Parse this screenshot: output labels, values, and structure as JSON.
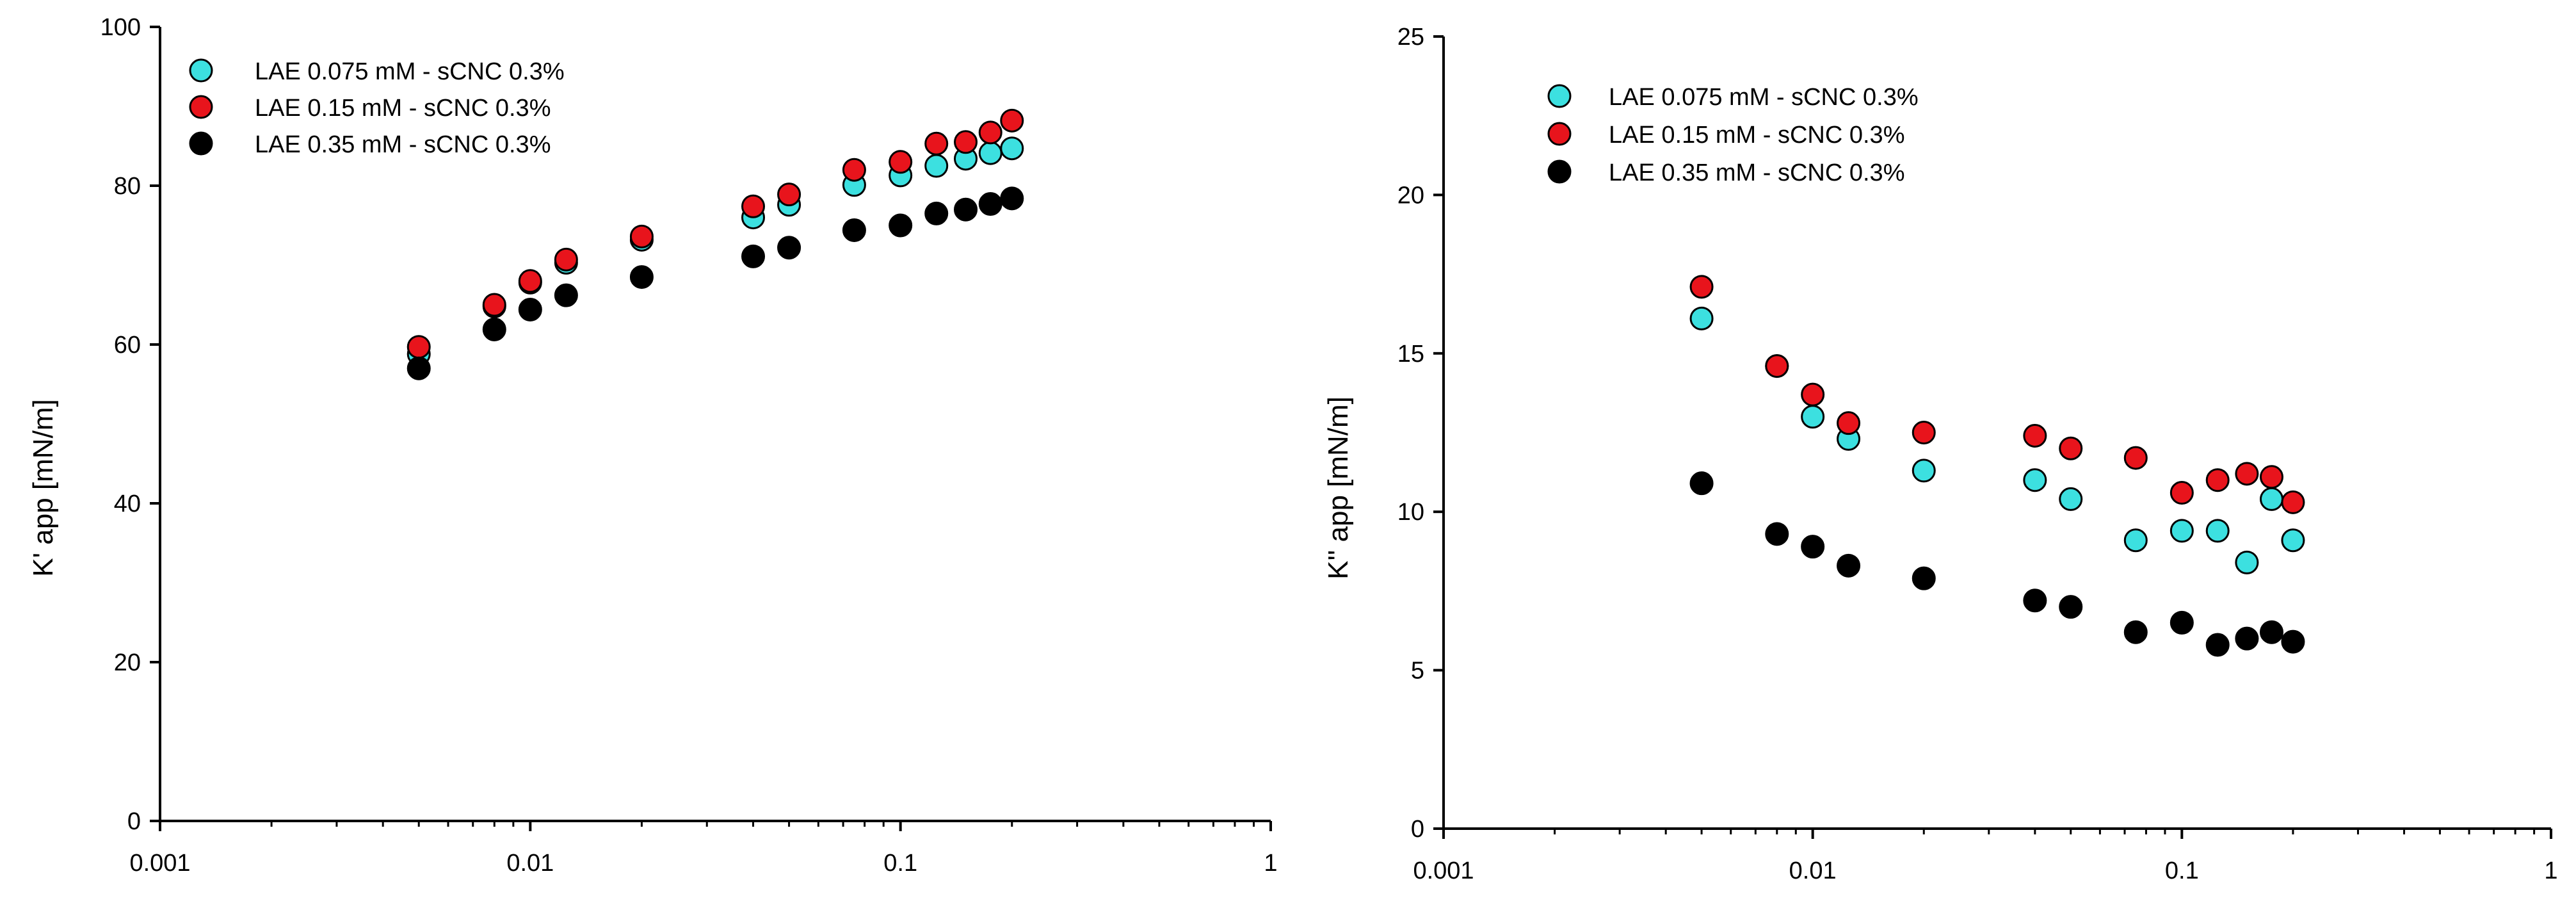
{
  "colors": {
    "series_cyan": "#3ce0e0",
    "series_red": "#e8141c",
    "series_black": "#000000",
    "axis": "#000000"
  },
  "chart_data": [
    {
      "type": "scatter",
      "title": "",
      "xlabel": "",
      "ylabel": "K' app [mN/m]",
      "xscale": "log",
      "xlim": [
        0.001,
        1
      ],
      "ylim": [
        0,
        100
      ],
      "xticks": [
        0.001,
        0.01,
        0.1,
        1
      ],
      "xtick_labels": [
        "0.001",
        "0.01",
        "0.1",
        "1"
      ],
      "yticks": [
        0,
        20,
        40,
        60,
        80,
        100
      ],
      "ytick_labels": [
        "0",
        "20",
        "40",
        "60",
        "80",
        "100"
      ],
      "grid": false,
      "legend_position": "top-left",
      "x": [
        0.005,
        0.008,
        0.01,
        0.0125,
        0.02,
        0.04,
        0.05,
        0.075,
        0.1,
        0.125,
        0.15,
        0.175,
        0.2
      ],
      "series": [
        {
          "name": "LAE 0.075 mM - sCNC 0.3%",
          "color": "#3ce0e0",
          "values": [
            58.8,
            64.8,
            67.8,
            70.3,
            73.2,
            76.0,
            77.6,
            80.1,
            81.3,
            82.5,
            83.4,
            84.1,
            84.7
          ]
        },
        {
          "name": "LAE 0.15 mM - sCNC 0.3%",
          "color": "#e8141c",
          "values": [
            59.7,
            65.0,
            68.0,
            70.7,
            73.6,
            77.4,
            78.9,
            82.0,
            83.0,
            85.3,
            85.5,
            86.7,
            88.2
          ]
        },
        {
          "name": "LAE 0.35 mM - sCNC 0.3%",
          "color": "#000000",
          "values": [
            57.0,
            61.9,
            64.4,
            66.2,
            68.5,
            71.1,
            72.2,
            74.4,
            75.0,
            76.5,
            77.0,
            77.7,
            78.4
          ]
        }
      ]
    },
    {
      "type": "scatter",
      "title": "",
      "xlabel": "",
      "ylabel": "K'' app [mN/m]",
      "xscale": "log",
      "xlim": [
        0.001,
        1
      ],
      "ylim": [
        0,
        25
      ],
      "xticks": [
        0.001,
        0.01,
        0.1,
        1
      ],
      "xtick_labels": [
        "0.001",
        "0.01",
        "0.1",
        "1"
      ],
      "yticks": [
        0,
        5,
        10,
        15,
        20,
        25
      ],
      "ytick_labels": [
        "0",
        "5",
        "10",
        "15",
        "20",
        "25"
      ],
      "grid": false,
      "legend_position": "top-left",
      "x": [
        0.005,
        0.008,
        0.01,
        0.0125,
        0.02,
        0.04,
        0.05,
        0.075,
        0.1,
        0.125,
        0.15,
        0.175,
        0.2
      ],
      "series": [
        {
          "name": "LAE 0.075 mM - sCNC 0.3%",
          "color": "#3ce0e0",
          "values": [
            16.1,
            14.6,
            13.0,
            12.3,
            11.3,
            11.0,
            10.4,
            9.1,
            9.4,
            9.4,
            8.4,
            10.4,
            9.1
          ]
        },
        {
          "name": "LAE 0.15 mM - sCNC 0.3%",
          "color": "#e8141c",
          "values": [
            17.1,
            14.6,
            13.7,
            12.8,
            12.5,
            12.4,
            12.0,
            11.7,
            10.6,
            11.0,
            11.2,
            11.1,
            10.3
          ]
        },
        {
          "name": "LAE 0.35 mM - sCNC 0.3%",
          "color": "#000000",
          "values": [
            10.9,
            9.3,
            8.9,
            8.3,
            7.9,
            7.2,
            7.0,
            6.2,
            6.5,
            5.8,
            6.0,
            6.2,
            5.9
          ]
        }
      ]
    }
  ]
}
